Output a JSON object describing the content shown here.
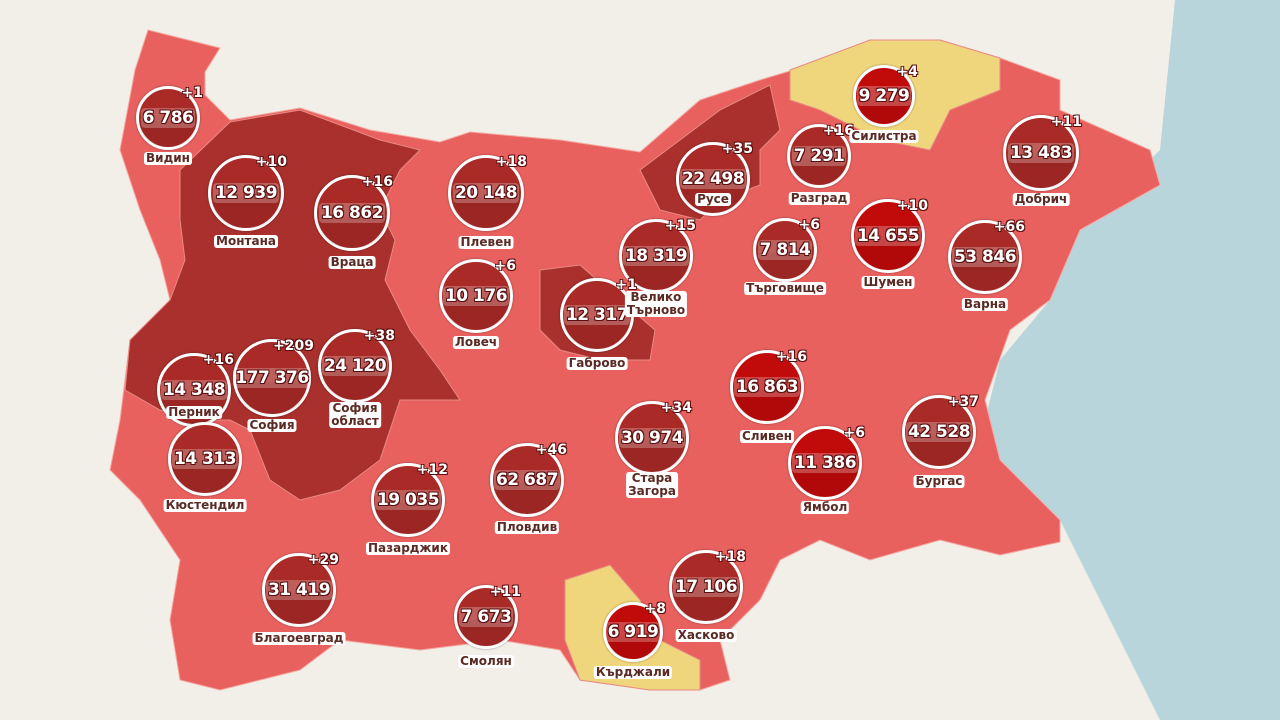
{
  "colors": {
    "land": "#e8615f",
    "dark_region": "#a9302d",
    "yellow_region": "#efd67c",
    "sea": "#b9d5dc",
    "bubble_dark": "#a92a26",
    "bubble_bright": "#c10a0a"
  },
  "regions": [
    {
      "name": "Видин",
      "total": "6 786",
      "delta": "+1",
      "level": "dark"
    },
    {
      "name": "Монтана",
      "total": "12 939",
      "delta": "+10",
      "level": "dark"
    },
    {
      "name": "Враца",
      "total": "16 862",
      "delta": "+16",
      "level": "dark"
    },
    {
      "name": "Плевен",
      "total": "20 148",
      "delta": "+18",
      "level": "dark"
    },
    {
      "name": "Ловеч",
      "total": "10 176",
      "delta": "+6",
      "level": "dark"
    },
    {
      "name": "Габрово",
      "total": "12 317",
      "delta": "+1",
      "level": "dark"
    },
    {
      "name": "Велико\nТърново",
      "total": "18 319",
      "delta": "+15",
      "level": "dark"
    },
    {
      "name": "Русе",
      "total": "22 498",
      "delta": "+35",
      "level": "dark"
    },
    {
      "name": "Разград",
      "total": "7 291",
      "delta": "+16",
      "level": "dark"
    },
    {
      "name": "Силистра",
      "total": "9 279",
      "delta": "+4",
      "level": "bright"
    },
    {
      "name": "Добрич",
      "total": "13 483",
      "delta": "+11",
      "level": "dark"
    },
    {
      "name": "Търговище",
      "total": "7 814",
      "delta": "+6",
      "level": "dark"
    },
    {
      "name": "Шумен",
      "total": "14 655",
      "delta": "+10",
      "level": "bright"
    },
    {
      "name": "Варна",
      "total": "53 846",
      "delta": "+66",
      "level": "dark"
    },
    {
      "name": "Перник",
      "total": "14 348",
      "delta": "+16",
      "level": "dark"
    },
    {
      "name": "София",
      "total": "177 376",
      "delta": "+209",
      "level": "dark"
    },
    {
      "name": "София\nобласт",
      "total": "24 120",
      "delta": "+38",
      "level": "dark"
    },
    {
      "name": "Кюстендил",
      "total": "14 313",
      "delta": "",
      "level": "dark"
    },
    {
      "name": "Пазарджик",
      "total": "19 035",
      "delta": "+12",
      "level": "dark"
    },
    {
      "name": "Пловдив",
      "total": "62 687",
      "delta": "+46",
      "level": "dark"
    },
    {
      "name": "Стара\nЗагора",
      "total": "30 974",
      "delta": "+34",
      "level": "dark"
    },
    {
      "name": "Сливен",
      "total": "16 863",
      "delta": "+16",
      "level": "bright"
    },
    {
      "name": "Ямбол",
      "total": "11 386",
      "delta": "+6",
      "level": "bright"
    },
    {
      "name": "Бургас",
      "total": "42 528",
      "delta": "+37",
      "level": "dark"
    },
    {
      "name": "Благоевград",
      "total": "31 419",
      "delta": "+29",
      "level": "dark"
    },
    {
      "name": "Смолян",
      "total": "7 673",
      "delta": "+11",
      "level": "dark"
    },
    {
      "name": "Хасково",
      "total": "17 106",
      "delta": "+18",
      "level": "dark"
    },
    {
      "name": "Кърджали",
      "total": "6 919",
      "delta": "+8",
      "level": "bright"
    }
  ]
}
